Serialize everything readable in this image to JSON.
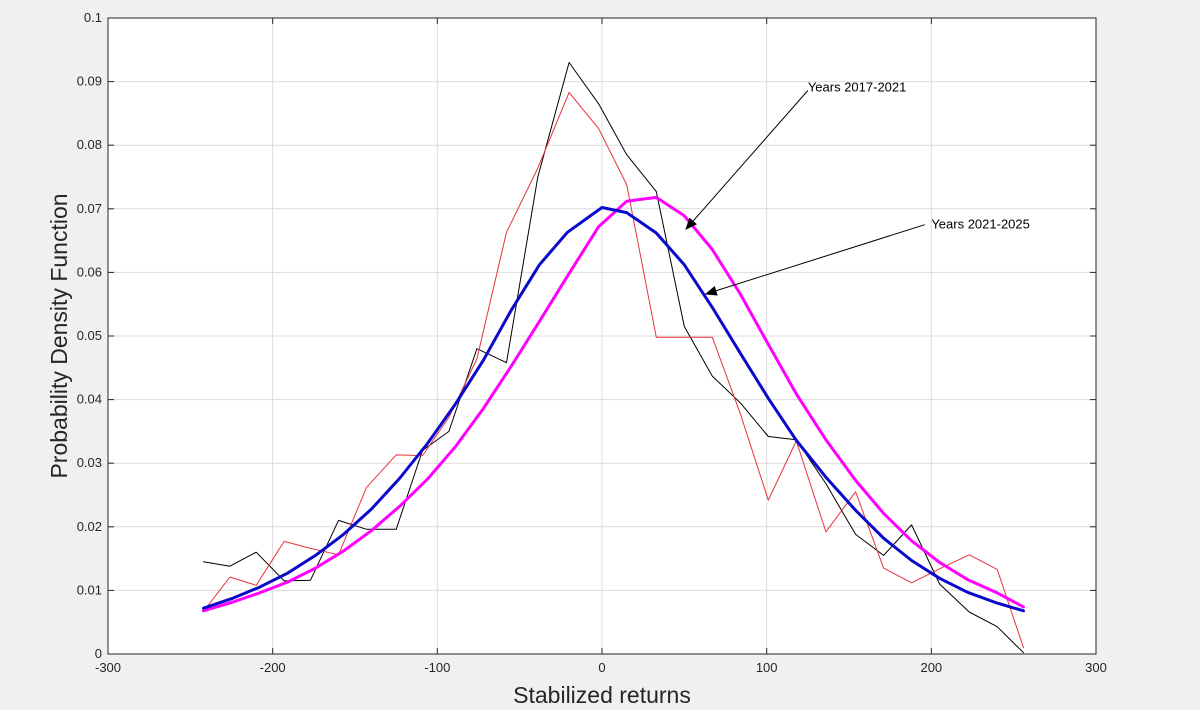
{
  "chart_data": {
    "type": "line",
    "title": "",
    "xlabel": "Stabilized returns",
    "ylabel": "Probability Density Function",
    "xlim": [
      -300,
      300
    ],
    "ylim": [
      0,
      0.1
    ],
    "xticks": [
      -300,
      -200,
      -100,
      0,
      100,
      200,
      300
    ],
    "xtick_labels": [
      "-300",
      "-200",
      "-100",
      "0",
      "100",
      "200",
      "300"
    ],
    "yticks": [
      0,
      0.01,
      0.02,
      0.03,
      0.04,
      0.05,
      0.06,
      0.07,
      0.08,
      0.09,
      0.1
    ],
    "ytick_labels": [
      "0",
      "0.01",
      "0.02",
      "0.03",
      "0.04",
      "0.05",
      "0.06",
      "0.07",
      "0.08",
      "0.09",
      "0.1"
    ],
    "grid": true,
    "series": [
      {
        "color": "#000000",
        "width": 1,
        "x": [
          -242,
          -226,
          -210,
          -193,
          -177,
          -160,
          -143,
          -125,
          -109,
          -93,
          -76,
          -58,
          -39,
          -20,
          -2,
          15,
          33,
          50,
          67,
          84,
          101,
          118,
          136,
          154,
          171,
          188,
          205,
          223,
          240,
          256
        ],
        "y": [
          0.0145,
          0.0138,
          0.016,
          0.0115,
          0.0116,
          0.021,
          0.0196,
          0.0196,
          0.032,
          0.035,
          0.048,
          0.0458,
          0.075,
          0.093,
          0.0865,
          0.0785,
          0.0727,
          0.0515,
          0.0437,
          0.0395,
          0.0342,
          0.0337,
          0.0268,
          0.0188,
          0.0155,
          0.0203,
          0.011,
          0.0066,
          0.0043,
          0.0002
        ]
      },
      {
        "color": "#e8323c",
        "width": 1,
        "x": [
          -242,
          -226,
          -210,
          -193,
          -177,
          -160,
          -143,
          -125,
          -109,
          -93,
          -76,
          -58,
          -39,
          -20,
          -2,
          15,
          33,
          50,
          67,
          84,
          101,
          118,
          136,
          154,
          171,
          188,
          205,
          223,
          240,
          256
        ],
        "y": [
          0.0067,
          0.0121,
          0.0108,
          0.0177,
          0.0166,
          0.0156,
          0.0262,
          0.0313,
          0.0312,
          0.0372,
          0.0464,
          0.0663,
          0.0764,
          0.0883,
          0.0826,
          0.0738,
          0.0498,
          0.0498,
          0.0498,
          0.0378,
          0.0242,
          0.0335,
          0.0192,
          0.0255,
          0.0135,
          0.0112,
          0.0134,
          0.0156,
          0.0133,
          0.001
        ]
      },
      {
        "color": "#ff00ff",
        "width": 3,
        "x": [
          -242,
          -225,
          -208,
          -191,
          -174,
          -157,
          -140,
          -123,
          -106,
          -89,
          -72,
          -55,
          -38,
          -21,
          -2,
          15,
          33,
          50,
          67,
          84,
          101,
          118,
          136,
          154,
          171,
          188,
          205,
          222,
          240,
          256
        ],
        "y": [
          0.0068,
          0.0081,
          0.0096,
          0.0113,
          0.0135,
          0.0162,
          0.0194,
          0.0232,
          0.0275,
          0.0326,
          0.0386,
          0.0453,
          0.0523,
          0.0594,
          0.0672,
          0.0712,
          0.0718,
          0.0689,
          0.0636,
          0.0566,
          0.0487,
          0.0409,
          0.0337,
          0.0273,
          0.0221,
          0.0178,
          0.0144,
          0.0117,
          0.0096,
          0.0074
        ]
      },
      {
        "color": "#0a0acc",
        "width": 3,
        "x": [
          -242,
          -225,
          -208,
          -191,
          -174,
          -157,
          -140,
          -123,
          -106,
          -89,
          -72,
          -55,
          -38,
          -21,
          0,
          15,
          33,
          50,
          67,
          84,
          101,
          118,
          136,
          154,
          171,
          188,
          205,
          222,
          240,
          256
        ],
        "y": [
          0.0072,
          0.0087,
          0.0105,
          0.0127,
          0.0155,
          0.0188,
          0.0228,
          0.0276,
          0.0331,
          0.0393,
          0.0462,
          0.0541,
          0.0612,
          0.0663,
          0.0702,
          0.0694,
          0.0662,
          0.0612,
          0.0545,
          0.0473,
          0.0402,
          0.0336,
          0.0278,
          0.0226,
          0.0182,
          0.0147,
          0.0119,
          0.0097,
          0.008,
          0.0068
        ]
      }
    ],
    "annotations": [
      {
        "text": "Years 2017-2021",
        "text_x": 125,
        "text_y": 0.0891,
        "arrow_from_x": 125,
        "arrow_from_y": 0.0886,
        "arrow_to_x": 51,
        "arrow_to_y": 0.0668
      },
      {
        "text": "Years 2021-2025",
        "text_x": 200,
        "text_y": 0.0675,
        "arrow_from_x": 196,
        "arrow_from_y": 0.0675,
        "arrow_to_x": 63,
        "arrow_to_y": 0.0566
      }
    ]
  }
}
